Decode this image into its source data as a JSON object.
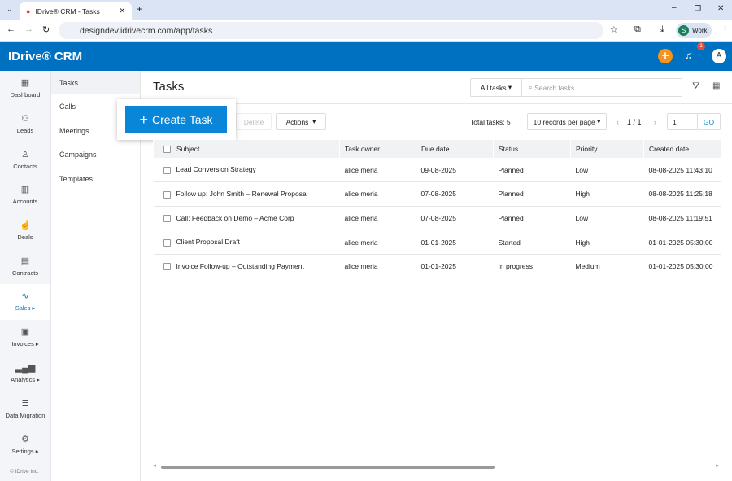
{
  "browser": {
    "tab_title": "IDrive® CRM - Tasks",
    "url": "designdev.idrivecrm.com/app/tasks",
    "profile": "Work",
    "profile_initial": "S"
  },
  "app": {
    "logo": "IDrive® CRM",
    "notification_count": "1",
    "avatar": "A",
    "brand_color": "#0070c0"
  },
  "sidebar": {
    "items": [
      {
        "label": "Dashboard",
        "icon": "dashboard-icon"
      },
      {
        "label": "Leads",
        "icon": "leads-icon"
      },
      {
        "label": "Contacts",
        "icon": "contacts-icon"
      },
      {
        "label": "Accounts",
        "icon": "accounts-icon"
      },
      {
        "label": "Deals",
        "icon": "deals-icon"
      },
      {
        "label": "Contracts",
        "icon": "contracts-icon"
      },
      {
        "label": "Sales ▸",
        "icon": "sales-icon"
      },
      {
        "label": "Invoices ▸",
        "icon": "invoices-icon"
      },
      {
        "label": "Analytics ▸",
        "icon": "analytics-icon"
      },
      {
        "label": "Data Migration",
        "icon": "data-migration-icon"
      },
      {
        "label": "Settings ▸",
        "icon": "settings-icon"
      }
    ],
    "footer": "© IDrive Inc."
  },
  "subnav": {
    "items": [
      "Tasks",
      "Calls",
      "Meetings",
      "Campaigns",
      "Templates"
    ]
  },
  "main": {
    "title": "Tasks",
    "filter": "All tasks",
    "search_placeholder": "Search tasks",
    "create_label": "Create Task",
    "delete_label": "Delete",
    "actions_label": "Actions",
    "total_label": "Total tasks:",
    "total": "5",
    "per_page": "10 records per page",
    "page": "1 / 1",
    "page_input": "1",
    "go": "GO"
  },
  "table": {
    "columns": [
      "Subject",
      "Task owner",
      "Due date",
      "Status",
      "Priority",
      "Created date"
    ],
    "rows": [
      [
        "Lead Conversion Strategy",
        "alice meria",
        "09-08-2025",
        "Planned",
        "Low",
        "08-08-2025 11:43:10"
      ],
      [
        "Follow up: John Smith – Renewal Proposal",
        "alice meria",
        "07-08-2025",
        "Planned",
        "High",
        "08-08-2025 11:25:18"
      ],
      [
        "Call: Feedback on Demo – Acme Corp",
        "alice meria",
        "07-08-2025",
        "Planned",
        "Low",
        "08-08-2025 11:19:51"
      ],
      [
        "Client Proposal Draft",
        "alice meria",
        "01-01-2025",
        "Started",
        "High",
        "01-01-2025 05:30:00"
      ],
      [
        "Invoice Follow-up – Outstanding Payment",
        "alice meria",
        "01-01-2025",
        "In progress",
        "Medium",
        "01-01-2025 05:30:00"
      ]
    ]
  }
}
